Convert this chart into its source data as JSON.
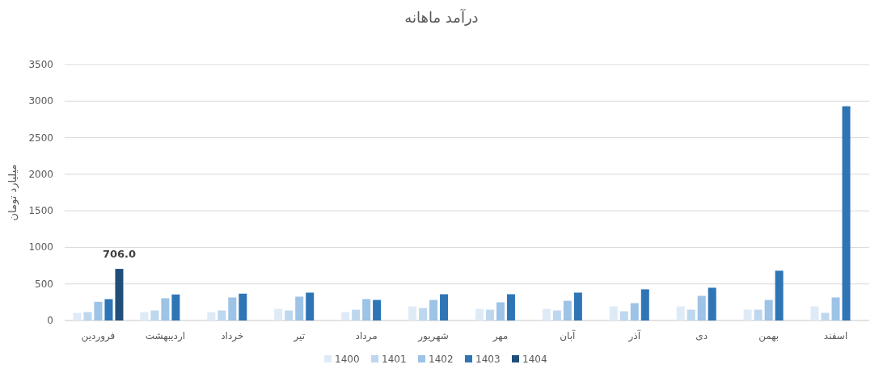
{
  "chart_data": {
    "type": "bar",
    "title": "درآمد ماهانه",
    "ylabel": "میلیارد تومان",
    "categories": [
      "فروردین",
      "اردیبهشت",
      "خرداد",
      "تیر",
      "مرداد",
      "شهریور",
      "مهر",
      "آبان",
      "آذر",
      "دی",
      "بهمن",
      "اسفند"
    ],
    "series": [
      {
        "name": "1400",
        "color": "#deebf7",
        "values": [
          103,
          115,
          115,
          159,
          115,
          193,
          159,
          159,
          193,
          193,
          148,
          193
        ]
      },
      {
        "name": "1401",
        "color": "#bdd7ee",
        "values": [
          115,
          137,
          137,
          137,
          148,
          170,
          148,
          137,
          126,
          148,
          148,
          104
        ]
      },
      {
        "name": "1402",
        "color": "#9dc3e6",
        "values": [
          256,
          304,
          315,
          326,
          293,
          281,
          248,
          270,
          237,
          337,
          281,
          315
        ]
      },
      {
        "name": "1403",
        "color": "#2e75b6",
        "values": [
          292,
          356,
          367,
          381,
          281,
          359,
          359,
          381,
          426,
          448,
          681,
          2930
        ]
      },
      {
        "name": "1404",
        "color": "#1f4e79",
        "values": [
          706.0,
          null,
          null,
          null,
          null,
          null,
          null,
          null,
          null,
          null,
          null,
          null
        ],
        "value_labels": [
          "706.0",
          null,
          null,
          null,
          null,
          null,
          null,
          null,
          null,
          null,
          null,
          null
        ]
      }
    ],
    "ylim": [
      0,
      3500
    ],
    "yticks": [
      0,
      500,
      1000,
      1500,
      2000,
      2500,
      3000,
      3500
    ],
    "grid": "y",
    "legend": "bottom"
  }
}
